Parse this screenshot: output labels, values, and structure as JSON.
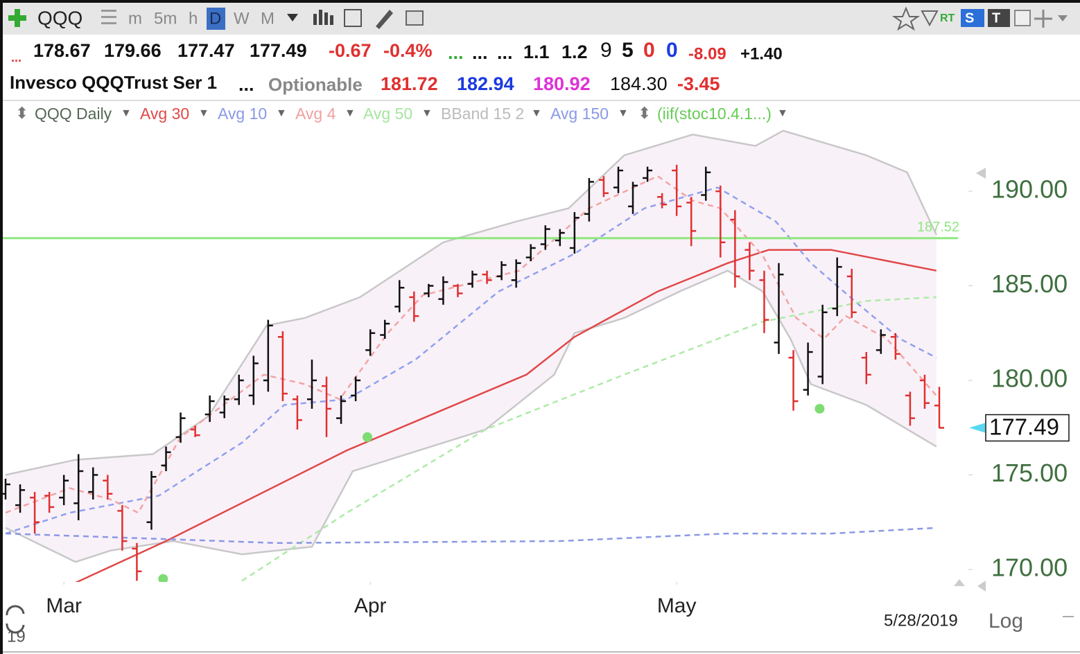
{
  "toolbar": {
    "symbol": "QQQ",
    "intervals": [
      "m",
      "5m",
      "h",
      "D",
      "W",
      "M"
    ],
    "badges": [
      "RT",
      "S",
      "T"
    ]
  },
  "quote": {
    "row1": [
      "...",
      "178.67",
      "179.66",
      "177.47",
      "177.49",
      "-0.67",
      "-0.4%",
      "...",
      "...",
      "...",
      "1.1",
      "1.2",
      "9",
      "5",
      "0",
      "0",
      "-8.09",
      "+1.40"
    ],
    "row2": [
      "Invesco QQQTrust Ser 1",
      "...",
      "Optionable",
      "181.72",
      "182.94",
      "180.92",
      "184.30",
      "-3.45"
    ]
  },
  "chart_data": {
    "type": "ohlc",
    "title": "QQQ Daily",
    "up_color": "#111111",
    "down_color": "#e03030",
    "bars": {
      "open": [
        174.0,
        173.4,
        173.8,
        173.9,
        173.8,
        173.5,
        174.1,
        174.7,
        173.1,
        171.1,
        172.5,
        175.5,
        177.0,
        177.4,
        178.2,
        178.3,
        179.0,
        179.2,
        180.0,
        182.3,
        179.0,
        179.0,
        179.7,
        178.0,
        179.2,
        181.6,
        182.4,
        183.9,
        184.4,
        184.6,
        184.3,
        185.0,
        185.1,
        185.6,
        185.5,
        185.3,
        186.5,
        187.2,
        187.4,
        187.0,
        188.8,
        190.6,
        190.2,
        189.2,
        190.7,
        189.7,
        191.1,
        189.4,
        189.8,
        190.0,
        188.5,
        186.9,
        185.3,
        182.0,
        181.2,
        179.5,
        180.2,
        183.8,
        185.5,
        181.2,
        181.6,
        182.3,
        179.2,
        180.0,
        178.67
      ],
      "high": [
        174.8,
        174.5,
        174.1,
        174.1,
        175.0,
        176.1,
        175.4,
        175.0,
        173.4,
        171.4,
        175.2,
        176.5,
        178.3,
        177.6,
        179.2,
        179.2,
        180.3,
        181.3,
        183.2,
        182.6,
        179.2,
        181.1,
        180.2,
        179.2,
        180.2,
        182.7,
        183.2,
        185.3,
        184.7,
        185.1,
        185.5,
        185.1,
        185.8,
        185.8,
        186.3,
        186.4,
        187.2,
        188.2,
        188.0,
        188.9,
        190.7,
        190.8,
        191.3,
        190.5,
        191.3,
        189.9,
        191.4,
        189.7,
        191.3,
        190.3,
        189.0,
        187.3,
        185.8,
        186.2,
        181.6,
        182.0,
        184.0,
        186.5,
        185.9,
        181.5,
        182.7,
        182.5,
        179.4,
        180.3,
        179.66
      ],
      "low": [
        173.7,
        173.0,
        171.9,
        173.0,
        173.4,
        172.6,
        173.7,
        173.7,
        171.0,
        169.4,
        172.1,
        175.2,
        176.7,
        177.0,
        177.8,
        178.0,
        178.7,
        178.7,
        179.4,
        178.9,
        177.4,
        178.5,
        177.0,
        177.7,
        178.9,
        181.3,
        182.2,
        183.6,
        183.1,
        184.4,
        184.0,
        184.4,
        184.9,
        185.1,
        185.3,
        184.9,
        186.3,
        186.9,
        187.1,
        186.7,
        188.4,
        189.7,
        189.9,
        188.8,
        190.5,
        189.1,
        188.7,
        187.1,
        189.5,
        186.5,
        184.9,
        185.3,
        182.5,
        181.4,
        178.4,
        179.2,
        179.8,
        183.4,
        183.3,
        179.8,
        181.4,
        181.1,
        177.6,
        178.5,
        177.47
      ],
      "close": [
        174.5,
        174.2,
        172.5,
        173.3,
        174.7,
        175.2,
        175.0,
        174.0,
        171.5,
        169.9,
        174.9,
        176.2,
        178.0,
        177.1,
        178.9,
        179.0,
        180.0,
        180.9,
        182.9,
        179.3,
        177.9,
        180.0,
        178.5,
        178.9,
        180.0,
        182.5,
        183.0,
        184.9,
        183.4,
        185.0,
        185.2,
        184.6,
        185.6,
        185.3,
        186.1,
        186.2,
        187.0,
        188.0,
        187.8,
        188.6,
        190.5,
        189.9,
        191.1,
        190.3,
        191.1,
        189.3,
        189.2,
        187.9,
        191.0,
        187.3,
        185.5,
        185.8,
        183.2,
        185.6,
        178.9,
        181.5,
        183.6,
        186.0,
        183.6,
        180.3,
        182.4,
        181.4,
        178.0,
        178.8,
        177.49
      ]
    },
    "series": [
      {
        "name": "Avg 30",
        "color": "#e04848",
        "dashed": false,
        "x": [
          4.8,
          11,
          23.4,
          35.7,
          39,
          44.7,
          49.5,
          52.3,
          56.6,
          63.8
        ],
        "values": [
          169.3,
          171.5,
          176.3,
          180.3,
          182.3,
          184.7,
          186.2,
          186.9,
          186.9,
          185.8
        ]
      },
      {
        "name": "Avg 10",
        "color": "#8fa0ee",
        "dashed": true,
        "x": [
          0,
          4.4,
          10.5,
          16.2,
          19.1,
          23.4,
          28.1,
          33.8,
          39,
          43.8,
          48.8,
          52.8,
          55.2,
          58.5,
          61.3,
          63.8
        ],
        "values": [
          171.9,
          173.0,
          173.9,
          176.7,
          178.7,
          179.0,
          181.1,
          184.7,
          186.7,
          189.1,
          190.2,
          188.4,
          186.2,
          184.0,
          182.2,
          181.2
        ]
      },
      {
        "name": "Avg 4",
        "color": "#f2a4a4",
        "dashed": true,
        "x": [
          0,
          4.4,
          7.2,
          9.1,
          12,
          17.7,
          20.5,
          22.9,
          26.2,
          28.6,
          35.2,
          40,
          44.7,
          47.1,
          49,
          51.9,
          54.2,
          56.1,
          57.6,
          60.4,
          63.8
        ],
        "values": [
          173.0,
          174.3,
          173.7,
          173.0,
          177.0,
          180.3,
          179.8,
          179.0,
          182.5,
          184.5,
          185.8,
          189.1,
          190.8,
          189.5,
          189.1,
          186.6,
          183.3,
          182.2,
          183.4,
          182.2,
          179.2
        ]
      },
      {
        "name": "Avg 50",
        "color": "#aeeaa8",
        "dashed": true,
        "x": [
          16.2,
          23.4,
          32.9,
          42.4,
          51.9,
          59,
          63.8
        ],
        "values": [
          169.4,
          173.0,
          177.4,
          180.3,
          183.1,
          184.2,
          184.4
        ]
      },
      {
        "name": "Avg 150",
        "color": "#8a98e6",
        "dashed": true,
        "x": [
          0,
          18.6,
          38,
          49.5,
          56.6,
          63.8
        ],
        "values": [
          171.9,
          171.4,
          171.5,
          171.9,
          171.9,
          172.2
        ]
      }
    ],
    "bband": {
      "name": "BBand 15 2",
      "color": "#c8c8c8",
      "fill": "#f9f1f8",
      "upper": {
        "x": [
          0,
          4.8,
          10.1,
          13.9,
          17.9,
          20.5,
          24.3,
          30,
          35,
          38.6,
          42.4,
          47.1,
          51.4,
          53.3,
          59,
          61.8,
          63.8
        ],
        "values": [
          175.0,
          175.8,
          176.1,
          178.1,
          182.9,
          183.3,
          184.4,
          187.3,
          188.4,
          189.1,
          191.9,
          193.0,
          192.4,
          193.2,
          191.9,
          191.0,
          187.7
        ]
      },
      "lower": {
        "x": [
          0,
          4.8,
          7.2,
          11.5,
          16.2,
          21,
          23.8,
          32.9,
          37.6,
          39,
          42.4,
          46.2,
          49.5,
          51.9,
          53.8,
          55.2,
          59,
          63.8
        ],
        "values": [
          172.2,
          170.4,
          171.0,
          171.5,
          170.8,
          171.2,
          175.2,
          177.4,
          180.3,
          182.5,
          183.3,
          184.7,
          185.8,
          184.7,
          182.2,
          179.8,
          178.7,
          176.5
        ]
      }
    },
    "signals": {
      "name": "(iif(stoc10.4.1...)",
      "color": "#7ddc72",
      "x": [
        10.8,
        24.8,
        55.8
      ],
      "values": [
        169.5,
        177.0,
        178.5
      ]
    },
    "hline": {
      "value": 187.52,
      "label": "187.52",
      "color": "#8ee87e"
    },
    "last": {
      "value": 177.49,
      "label": "177.49",
      "color": "#5ad8f0"
    },
    "xlim": [
      -0.19,
      65.9
    ],
    "ylim": [
      169.34,
      193.52
    ],
    "xticks": [
      {
        "value": 4,
        "label": "Mar"
      },
      {
        "value": 25,
        "label": "Apr"
      },
      {
        "value": 46,
        "label": "May"
      }
    ],
    "yticks": [
      {
        "value": 170,
        "label": "170.00"
      },
      {
        "value": 175,
        "label": "175.00"
      },
      {
        "value": 180,
        "label": "180.00"
      },
      {
        "value": 185,
        "label": "185.00"
      },
      {
        "value": 190,
        "label": "190.00"
      }
    ],
    "date": "5/28/2019",
    "scale_label": "Log"
  },
  "footer": {
    "year": "19"
  }
}
